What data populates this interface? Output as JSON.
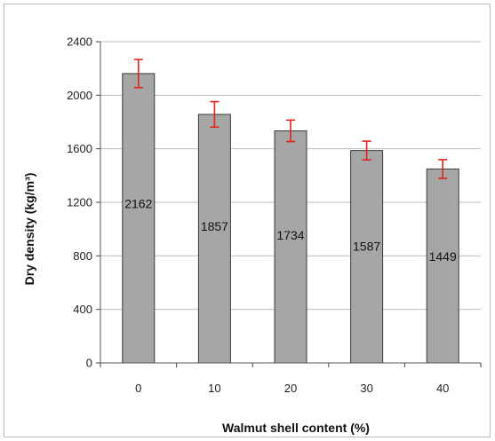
{
  "chart_data": {
    "type": "bar",
    "categories": [
      "0",
      "10",
      "20",
      "30",
      "40"
    ],
    "values": [
      2162,
      1857,
      1734,
      1587,
      1449
    ],
    "error": [
      105,
      95,
      80,
      70,
      70
    ],
    "data_labels": [
      "2162",
      "1857",
      "1734",
      "1587",
      "1449"
    ],
    "xlabel": "Walmut shell content (%)",
    "ylabel": "Dry density (kg/m³)",
    "ylim": [
      0,
      2400
    ],
    "yticks": [
      0,
      400,
      800,
      1200,
      1600,
      2000,
      2400
    ],
    "grid": true,
    "bar_color": "#a6a6a6",
    "error_color": "#e2231a",
    "legend": null
  }
}
